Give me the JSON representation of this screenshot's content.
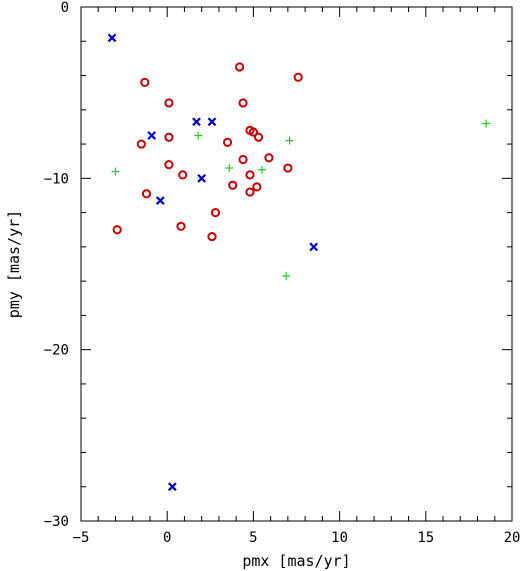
{
  "chart_data": {
    "type": "scatter",
    "xlabel": "pmx [mas/yr]",
    "ylabel": "pmy [mas/yr]",
    "xlim": [
      -5,
      20
    ],
    "ylim": [
      -30,
      0
    ],
    "xticks": [
      -5,
      0,
      5,
      10,
      15,
      20
    ],
    "yticks": [
      0,
      -10,
      -20,
      -30
    ],
    "xtick_labels": [
      "−5",
      "0",
      "5",
      "10",
      "15",
      "20"
    ],
    "ytick_labels": [
      "0",
      "−10",
      "−20",
      "−30"
    ],
    "x_minor_step": 1,
    "y_minor_step": 2,
    "grid": false,
    "series": [
      {
        "marker": "circle",
        "color": "#cc0000",
        "x": [
          4.2,
          7.6,
          -1.3,
          0.1,
          4.4,
          4.8,
          5.0,
          5.3,
          -1.5,
          0.1,
          3.5,
          0.1,
          4.4,
          5.9,
          7.0,
          0.9,
          4.8,
          3.8,
          5.2,
          4.8,
          -1.2,
          2.8,
          -2.9,
          0.8,
          2.6
        ],
        "y": [
          -3.5,
          -4.1,
          -4.4,
          -5.6,
          -5.6,
          -7.2,
          -7.3,
          -7.6,
          -8.0,
          -7.6,
          -7.9,
          -9.2,
          -8.9,
          -8.8,
          -9.4,
          -9.8,
          -9.8,
          -10.4,
          -10.5,
          -10.8,
          -10.9,
          -12.0,
          -13.0,
          -12.8,
          -13.4
        ]
      },
      {
        "marker": "x",
        "color": "#0000cc",
        "x": [
          -3.2,
          -0.9,
          1.7,
          2.6,
          2.0,
          -0.4,
          8.5,
          0.3
        ],
        "y": [
          -1.8,
          -7.5,
          -6.7,
          -6.7,
          -10.0,
          -11.3,
          -14.0,
          -28.0
        ]
      },
      {
        "marker": "plus",
        "color": "#22cc22",
        "x": [
          18.5,
          1.8,
          7.1,
          -3.0,
          3.6,
          5.5,
          6.9
        ],
        "y": [
          -6.8,
          -7.5,
          -7.8,
          -9.6,
          -9.4,
          -9.5,
          -15.7
        ]
      }
    ]
  }
}
